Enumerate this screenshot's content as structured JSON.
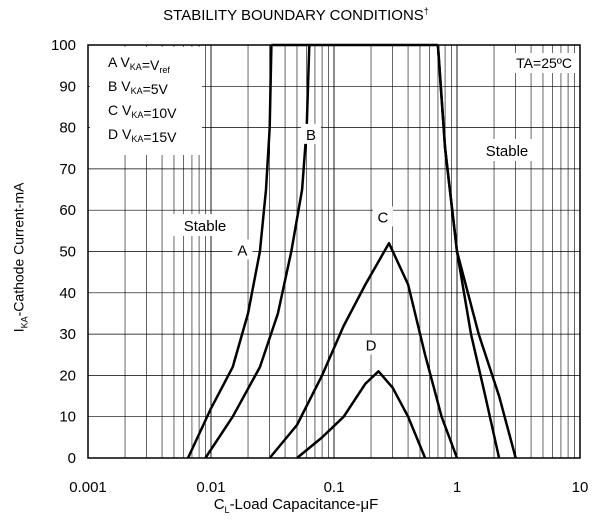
{
  "chart_data": {
    "type": "line",
    "title": "STABILITY BOUNDARY CONDITIONS",
    "title_mark": "†",
    "xlabel": {
      "prefix": "C",
      "sub": "L",
      "suffix": "-Load Capacitance-μF"
    },
    "ylabel": {
      "prefix": "I",
      "sub": "KA",
      "suffix": "-Cathode Current-mA"
    },
    "x_scale": "log",
    "xlim": [
      0.001,
      10
    ],
    "ylim": [
      0,
      100
    ],
    "x_tick_labels": [
      "0.001",
      "0.01",
      "0.1",
      "1",
      "10"
    ],
    "y_tick_labels": [
      "0",
      "10",
      "20",
      "30",
      "40",
      "50",
      "60",
      "70",
      "80",
      "90",
      "100"
    ],
    "grid": true,
    "legend_items": [
      {
        "letter": "A",
        "vka": "V",
        "sub": "KA",
        "eq": "=V",
        "sub2": "ref"
      },
      {
        "letter": "B",
        "vka": "V",
        "sub": "KA",
        "eq": "=5V",
        "sub2": ""
      },
      {
        "letter": "C",
        "vka": "V",
        "sub": "KA",
        "eq": "=10V",
        "sub2": ""
      },
      {
        "letter": "D",
        "vka": "V",
        "sub": "KA",
        "eq": "=15V",
        "sub2": ""
      }
    ],
    "annotations": {
      "ta": "TA=25ºC",
      "stable_left": "Stable",
      "stable_right": "Stable"
    },
    "series": [
      {
        "name": "A",
        "left": [
          [
            0.0065,
            0
          ],
          [
            0.01,
            12
          ],
          [
            0.015,
            22
          ],
          [
            0.02,
            35
          ],
          [
            0.025,
            50
          ],
          [
            0.028,
            65
          ],
          [
            0.03,
            80
          ],
          [
            0.031,
            100
          ]
        ],
        "top": [
          [
            0.031,
            100
          ],
          [
            0.7,
            100
          ]
        ],
        "right": [
          [
            0.7,
            100
          ],
          [
            0.8,
            75
          ],
          [
            1.0,
            50
          ],
          [
            1.5,
            30
          ],
          [
            2.2,
            15
          ],
          [
            3,
            0
          ]
        ]
      },
      {
        "name": "B",
        "left": [
          [
            0.009,
            0
          ],
          [
            0.015,
            10
          ],
          [
            0.025,
            22
          ],
          [
            0.035,
            35
          ],
          [
            0.045,
            50
          ],
          [
            0.055,
            65
          ],
          [
            0.06,
            80
          ],
          [
            0.063,
            100
          ]
        ],
        "right": [
          [
            0.7,
            100
          ],
          [
            0.8,
            75
          ],
          [
            1.0,
            50
          ],
          [
            1.3,
            30
          ],
          [
            1.7,
            15
          ],
          [
            2.2,
            0
          ]
        ]
      },
      {
        "name": "C",
        "curve": [
          [
            0.03,
            0
          ],
          [
            0.05,
            8
          ],
          [
            0.08,
            20
          ],
          [
            0.12,
            32
          ],
          [
            0.18,
            42
          ],
          [
            0.28,
            52
          ],
          [
            0.4,
            42
          ],
          [
            0.55,
            25
          ],
          [
            0.75,
            10
          ],
          [
            1.0,
            0
          ]
        ]
      },
      {
        "name": "D",
        "curve": [
          [
            0.05,
            0
          ],
          [
            0.08,
            5
          ],
          [
            0.12,
            10
          ],
          [
            0.18,
            18
          ],
          [
            0.23,
            21
          ],
          [
            0.3,
            17
          ],
          [
            0.4,
            10
          ],
          [
            0.5,
            3
          ],
          [
            0.55,
            0
          ]
        ]
      }
    ],
    "curve_labels": [
      {
        "text": "A",
        "x": 0.018,
        "y": 50
      },
      {
        "text": "B",
        "x": 0.065,
        "y": 78
      },
      {
        "text": "C",
        "x": 0.25,
        "y": 58
      },
      {
        "text": "D",
        "x": 0.2,
        "y": 27
      }
    ]
  },
  "colors": {
    "line": "#000000",
    "grid": "#000000",
    "watermark": "#e0e0e0"
  }
}
